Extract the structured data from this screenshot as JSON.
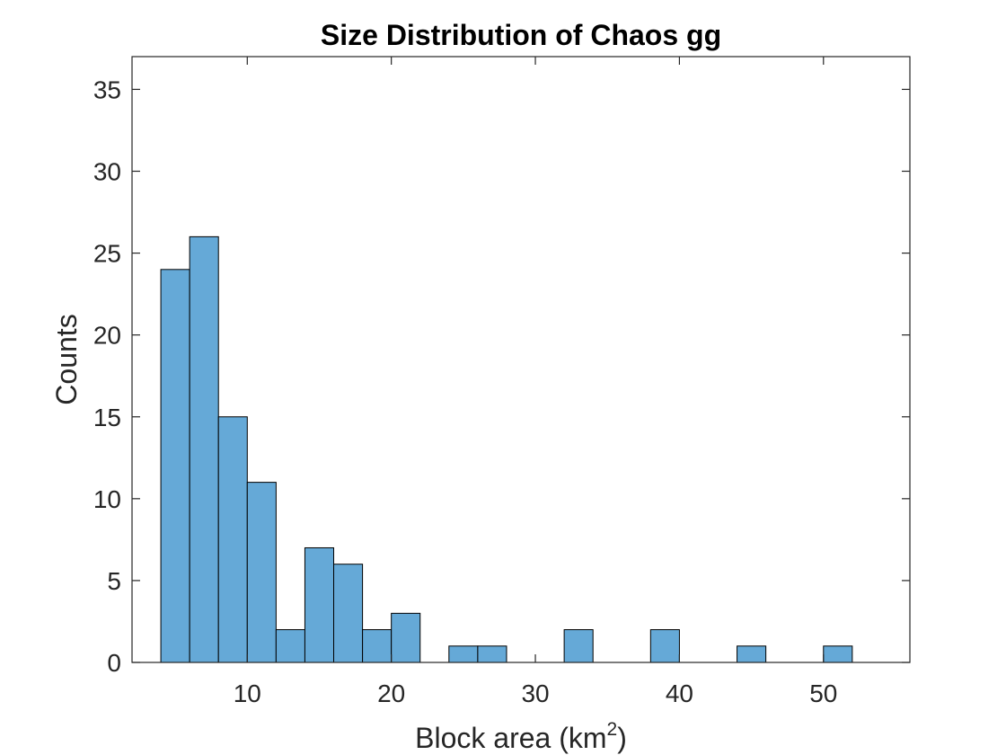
{
  "chart_data": {
    "type": "bar",
    "title": "Size Distribution of Chaos gg",
    "xlabel": {
      "prefix": "Block area (km",
      "superscript": "2",
      "suffix": ")"
    },
    "ylabel": "Counts",
    "xlim": [
      2,
      56
    ],
    "ylim": [
      0,
      37
    ],
    "xticks": [
      10,
      20,
      30,
      40,
      50
    ],
    "yticks": [
      0,
      5,
      10,
      15,
      20,
      25,
      30,
      35
    ],
    "bin_width": 2,
    "bins": [
      {
        "start": 4,
        "end": 6,
        "count": 24
      },
      {
        "start": 6,
        "end": 8,
        "count": 26
      },
      {
        "start": 8,
        "end": 10,
        "count": 15
      },
      {
        "start": 10,
        "end": 12,
        "count": 11
      },
      {
        "start": 12,
        "end": 14,
        "count": 2
      },
      {
        "start": 14,
        "end": 16,
        "count": 7
      },
      {
        "start": 16,
        "end": 18,
        "count": 6
      },
      {
        "start": 18,
        "end": 20,
        "count": 2
      },
      {
        "start": 20,
        "end": 22,
        "count": 3
      },
      {
        "start": 22,
        "end": 24,
        "count": 0
      },
      {
        "start": 24,
        "end": 26,
        "count": 1
      },
      {
        "start": 26,
        "end": 28,
        "count": 1
      },
      {
        "start": 28,
        "end": 30,
        "count": 0
      },
      {
        "start": 30,
        "end": 32,
        "count": 0
      },
      {
        "start": 32,
        "end": 34,
        "count": 2
      },
      {
        "start": 34,
        "end": 36,
        "count": 0
      },
      {
        "start": 36,
        "end": 38,
        "count": 0
      },
      {
        "start": 38,
        "end": 40,
        "count": 2
      },
      {
        "start": 40,
        "end": 42,
        "count": 0
      },
      {
        "start": 42,
        "end": 44,
        "count": 0
      },
      {
        "start": 44,
        "end": 46,
        "count": 1
      },
      {
        "start": 46,
        "end": 48,
        "count": 0
      },
      {
        "start": 48,
        "end": 50,
        "count": 0
      },
      {
        "start": 50,
        "end": 52,
        "count": 1
      }
    ],
    "bar_color": "#65A9D7",
    "edge_color": "#000000",
    "grid": false,
    "legend": "none"
  }
}
